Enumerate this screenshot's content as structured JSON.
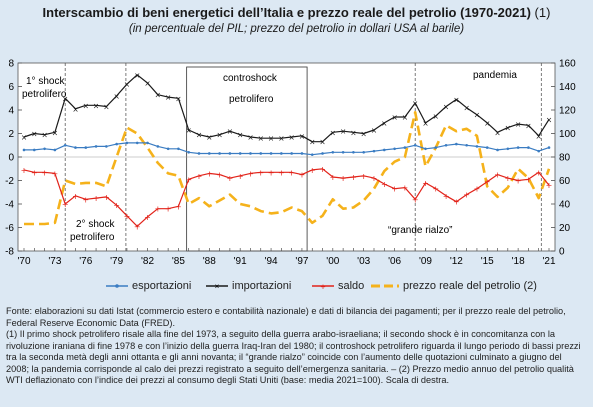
{
  "header": {
    "title_main": "Interscambio di beni energetici dell’Italia e prezzo reale del petrolio (1970-2021)",
    "title_note": " (1)",
    "subtitle": "(in percentuale del PIL; prezzo del petrolio in dollari USA al barile)"
  },
  "colors": {
    "esportazioni": "#3a7cc2",
    "importazioni": "#1a1a1a",
    "saldo": "#e2231a",
    "prezzo": "#f5b21b",
    "background": "#dce8f3"
  },
  "annotations": {
    "shock1": [
      "1° shock",
      "petrolifero"
    ],
    "shock2": [
      "2° shock",
      "petrolifero"
    ],
    "controshock": [
      "controshock",
      "petrolifero"
    ],
    "pandemia": "pandemia",
    "grande_rialzo": "“grande rialzo”"
  },
  "legend": {
    "esportazioni": "esportazioni",
    "importazioni": "importazioni",
    "saldo": "saldo",
    "prezzo": "prezzo reale del petrolio (2)"
  },
  "notes": {
    "fonte": "Fonte: elaborazioni su dati Istat (commercio estero e contabilità nazionale) e dati di bilancia dei pagamenti; per il prezzo reale del petrolio, Federal Reserve Economic Data (FRED).",
    "nota1": "(1) Il primo shock petrolifero risale alla fine del 1973, a seguito della guerra arabo-israeliana; il secondo shock è in concomitanza con la rivoluzione iraniana di fine 1978 e con l’inizio della guerra Iraq-Iran del 1980; il controshock petrolifero riguarda il lungo periodo di bassi prezzi tra la seconda metà degli anni ottanta e gli anni novanta; il “grande rialzo” coincide con l’aumento delle quotazioni culminato a giugno del 2008; la pandemia corrisponde al calo dei prezzi registrato a seguito dell’emergenza sanitaria. – (2) Prezzo medio annuo del petrolio qualità WTI deflazionato con l’indice dei prezzi al consumo degli Stati Uniti (base: media 2021=100). Scala di destra."
  },
  "chart_data": {
    "type": "line",
    "x": [
      1970,
      1971,
      1972,
      1973,
      1974,
      1975,
      1976,
      1977,
      1978,
      1979,
      1980,
      1981,
      1982,
      1983,
      1984,
      1985,
      1986,
      1987,
      1988,
      1989,
      1990,
      1991,
      1992,
      1993,
      1994,
      1995,
      1996,
      1997,
      1998,
      1999,
      2000,
      2001,
      2002,
      2003,
      2004,
      2005,
      2006,
      2007,
      2008,
      2009,
      2010,
      2011,
      2012,
      2013,
      2014,
      2015,
      2016,
      2017,
      2018,
      2019,
      2020,
      2021
    ],
    "x_tick_labels": [
      "'70",
      "'73",
      "'76",
      "'79",
      "'82",
      "'85",
      "'88",
      "'91",
      "'94",
      "'97",
      "'00",
      "'03",
      "'06",
      "'09",
      "'12",
      "'15",
      "'18",
      "'21"
    ],
    "y_left": {
      "min": -8,
      "max": 8,
      "ticks": [
        -8,
        -6,
        -4,
        -2,
        0,
        2,
        4,
        6,
        8
      ]
    },
    "y_right": {
      "min": 0,
      "max": 160,
      "ticks": [
        0,
        20,
        40,
        60,
        80,
        100,
        120,
        140,
        160
      ]
    },
    "grid": false,
    "legend_position": "bottom",
    "shaded_periods": [
      [
        1973.8,
        1974.2
      ],
      [
        1978.8,
        1981
      ],
      [
        1985.8,
        1997.5
      ],
      [
        2007.5,
        2008.5
      ],
      [
        2020,
        2020.5
      ]
    ],
    "series": [
      {
        "name": "esportazioni",
        "axis": "left",
        "values": [
          0.6,
          0.6,
          0.7,
          0.6,
          1.0,
          0.8,
          0.8,
          0.9,
          0.9,
          1.1,
          1.2,
          1.2,
          1.2,
          0.9,
          0.7,
          0.7,
          0.4,
          0.3,
          0.3,
          0.3,
          0.3,
          0.3,
          0.3,
          0.3,
          0.3,
          0.3,
          0.3,
          0.3,
          0.2,
          0.3,
          0.4,
          0.4,
          0.4,
          0.4,
          0.5,
          0.6,
          0.7,
          0.8,
          1.0,
          0.7,
          0.8,
          1.0,
          1.1,
          1.0,
          0.9,
          0.8,
          0.6,
          0.7,
          0.8,
          0.8,
          0.5,
          0.8
        ]
      },
      {
        "name": "importazioni",
        "axis": "left",
        "values": [
          1.7,
          2.0,
          1.9,
          2.1,
          5.0,
          4.1,
          4.4,
          4.4,
          4.3,
          5.2,
          6.2,
          7.0,
          6.3,
          5.3,
          5.1,
          5.0,
          2.3,
          1.9,
          1.7,
          1.9,
          2.2,
          1.9,
          1.7,
          1.6,
          1.6,
          1.6,
          1.7,
          1.8,
          1.3,
          1.3,
          2.1,
          2.2,
          2.1,
          2.0,
          2.3,
          2.9,
          3.4,
          3.4,
          4.6,
          2.9,
          3.5,
          4.3,
          4.9,
          4.2,
          3.6,
          2.9,
          2.1,
          2.5,
          2.8,
          2.7,
          1.8,
          3.2
        ]
      },
      {
        "name": "saldo",
        "axis": "left",
        "values": [
          -1.1,
          -1.3,
          -1.3,
          -1.4,
          -4.0,
          -3.3,
          -3.6,
          -3.5,
          -3.4,
          -4.1,
          -5.0,
          -5.9,
          -5.1,
          -4.4,
          -4.4,
          -4.2,
          -1.9,
          -1.6,
          -1.4,
          -1.5,
          -1.8,
          -1.6,
          -1.4,
          -1.3,
          -1.3,
          -1.3,
          -1.3,
          -1.5,
          -1.1,
          -1.0,
          -1.7,
          -1.8,
          -1.7,
          -1.6,
          -1.8,
          -2.3,
          -2.7,
          -2.6,
          -3.6,
          -2.2,
          -2.7,
          -3.3,
          -3.8,
          -3.2,
          -2.7,
          -2.1,
          -1.5,
          -1.8,
          -2.0,
          -1.9,
          -1.3,
          -2.4
        ]
      },
      {
        "name": "prezzo reale del petrolio (2)",
        "axis": "right",
        "dashed": true,
        "values": [
          23,
          23,
          23,
          24,
          60,
          57,
          58,
          58,
          55,
          80,
          105,
          100,
          88,
          75,
          66,
          64,
          40,
          45,
          38,
          43,
          48,
          40,
          38,
          34,
          32,
          33,
          37,
          34,
          24,
          30,
          44,
          36,
          37,
          43,
          53,
          68,
          76,
          80,
          118,
          72,
          88,
          107,
          102,
          104,
          98,
          55,
          46,
          54,
          70,
          62,
          45,
          70
        ]
      }
    ]
  }
}
